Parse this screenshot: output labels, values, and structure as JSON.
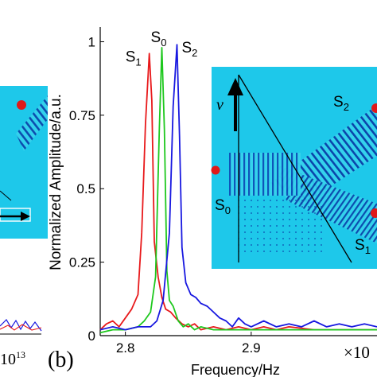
{
  "figure": {
    "panel_label": "(b)",
    "left_fragment_text": "10",
    "left_fragment_exponent": "13"
  },
  "chart_data": {
    "type": "line",
    "xlabel": "Frequency/Hz",
    "ylabel": "Normalized Amplitude/a.u.",
    "x_multiplier_text": "×10",
    "xlim": [
      2.78,
      3.0
    ],
    "ylim": [
      0,
      1.05
    ],
    "xticks": [
      2.8,
      2.9
    ],
    "xtick_labels": [
      "2.8",
      "2.9"
    ],
    "yticks": [
      0,
      0.25,
      0.5,
      0.75,
      1
    ],
    "ytick_labels": [
      "0",
      "0.25",
      "0.5",
      "0.75",
      "1"
    ],
    "grid": false,
    "series": [
      {
        "name": "S1",
        "color": "#e8191b",
        "peak_label_base": "S",
        "peak_label_sub": "1",
        "x": [
          2.78,
          2.785,
          2.79,
          2.795,
          2.8,
          2.805,
          2.81,
          2.813,
          2.816,
          2.819,
          2.821,
          2.823,
          2.826,
          2.829,
          2.832,
          2.836,
          2.84,
          2.845,
          2.85,
          2.855,
          2.86,
          2.87,
          2.88,
          2.89,
          2.9,
          2.91,
          2.92,
          2.93,
          2.95,
          2.97,
          3.0
        ],
        "values": [
          0.02,
          0.04,
          0.05,
          0.03,
          0.06,
          0.09,
          0.14,
          0.35,
          0.72,
          0.96,
          0.8,
          0.32,
          0.2,
          0.13,
          0.09,
          0.08,
          0.06,
          0.04,
          0.03,
          0.04,
          0.02,
          0.03,
          0.02,
          0.03,
          0.02,
          0.03,
          0.02,
          0.03,
          0.02,
          0.02,
          0.02
        ]
      },
      {
        "name": "S0",
        "color": "#1ec81e",
        "peak_label_base": "S",
        "peak_label_sub": "0",
        "x": [
          2.78,
          2.79,
          2.8,
          2.81,
          2.815,
          2.82,
          2.824,
          2.827,
          2.829,
          2.831,
          2.833,
          2.835,
          2.838,
          2.842,
          2.846,
          2.85,
          2.855,
          2.86,
          2.87,
          2.88,
          2.89,
          2.9,
          2.92,
          2.94,
          2.96,
          3.0
        ],
        "values": [
          0.01,
          0.02,
          0.02,
          0.03,
          0.05,
          0.08,
          0.2,
          0.7,
          0.98,
          0.7,
          0.22,
          0.12,
          0.1,
          0.05,
          0.03,
          0.04,
          0.02,
          0.03,
          0.02,
          0.02,
          0.02,
          0.02,
          0.02,
          0.02,
          0.02,
          0.02
        ]
      },
      {
        "name": "S2",
        "color": "#1818e0",
        "peak_label_base": "S",
        "peak_label_sub": "2",
        "x": [
          2.78,
          2.79,
          2.8,
          2.81,
          2.82,
          2.825,
          2.83,
          2.835,
          2.838,
          2.841,
          2.843,
          2.845,
          2.848,
          2.852,
          2.856,
          2.86,
          2.865,
          2.87,
          2.875,
          2.88,
          2.885,
          2.89,
          2.895,
          2.9,
          2.91,
          2.92,
          2.93,
          2.94,
          2.95,
          2.96,
          2.97,
          2.98,
          2.99,
          3.0
        ],
        "values": [
          0.02,
          0.03,
          0.02,
          0.03,
          0.03,
          0.05,
          0.12,
          0.35,
          0.78,
          0.99,
          0.68,
          0.3,
          0.18,
          0.14,
          0.13,
          0.11,
          0.1,
          0.08,
          0.06,
          0.05,
          0.03,
          0.06,
          0.04,
          0.03,
          0.05,
          0.03,
          0.04,
          0.03,
          0.05,
          0.03,
          0.04,
          0.03,
          0.04,
          0.03
        ]
      }
    ]
  },
  "inset": {
    "velocity_label": "v",
    "labels": [
      {
        "base": "S",
        "sub": "2"
      },
      {
        "base": "S",
        "sub": "0"
      },
      {
        "base": "S",
        "sub": "1"
      }
    ]
  }
}
